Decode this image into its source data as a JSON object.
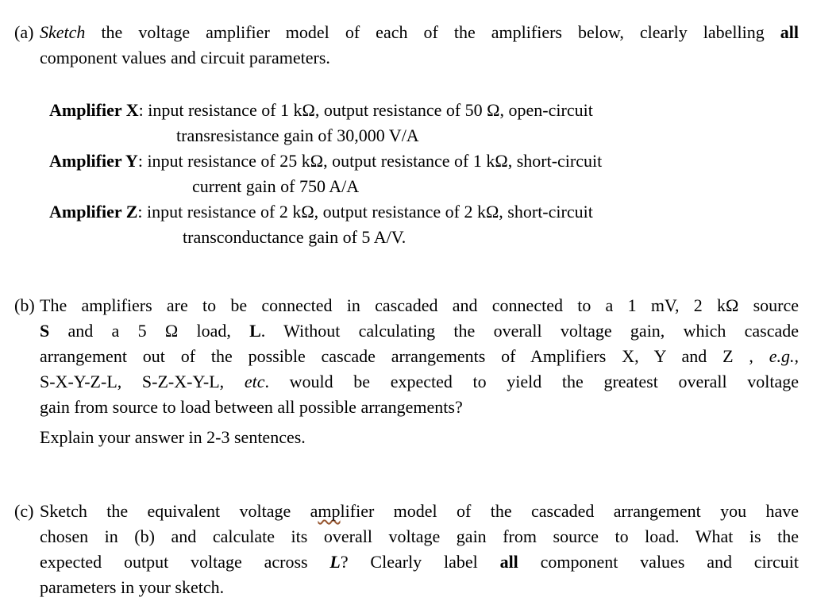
{
  "page": {
    "background_color": "#ffffff",
    "text_color": "#000000",
    "squiggle_color": "#96552f"
  },
  "section_a": {
    "label": "(a)",
    "lines": [
      [
        {
          "t": "Sketch",
          "i": 1
        },
        {
          "t": " the voltage amplifier model of each of the amplifiers below, clearly labelling "
        },
        {
          "t": "all",
          "b": 1
        }
      ],
      [
        {
          "t": "component values and circuit parameters."
        }
      ]
    ]
  },
  "amplifiers": {
    "x": [
      [
        {
          "t": "Amplifier X",
          "b": 1
        },
        {
          "t": ": input resistance of 1 kΩ, output resistance of 50 Ω, open-circuit"
        }
      ],
      [
        {
          "t": "transresistance gain of 30,000 V/A"
        }
      ]
    ],
    "y": [
      [
        {
          "t": "Amplifier Y",
          "b": 1
        },
        {
          "t": ": input resistance of 25 kΩ, output resistance of 1 kΩ, short-circuit"
        }
      ],
      [
        {
          "t": "current gain of 750 A/A"
        }
      ]
    ],
    "z": [
      [
        {
          "t": "Amplifier Z",
          "b": 1
        },
        {
          "t": ": input resistance of 2 kΩ, output resistance of 2 kΩ, short-circuit"
        }
      ],
      [
        {
          "t": "transconductance gain of 5 A/V."
        }
      ]
    ]
  },
  "section_b": {
    "label": "(b)",
    "lines": [
      [
        {
          "t": "The amplifiers are to be connected in cascaded and connected to a 1 mV, 2 kΩ source"
        }
      ],
      [
        {
          "t": "S",
          "b": 1
        },
        {
          "t": " and a 5 Ω load, "
        },
        {
          "t": "L",
          "b": 1
        },
        {
          "t": ". Without calculating the overall voltage gain, which cascade"
        }
      ],
      [
        {
          "t": "arrangement out of the possible cascade arrangements of Amplifiers X, Y and Z , "
        },
        {
          "t": "e.g.,",
          "i": 1
        }
      ],
      [
        {
          "t": "S-X-Y-Z-L, S-Z-X-Y-L, "
        },
        {
          "t": "etc",
          "i": 1
        },
        {
          "t": ". would be expected to yield the greatest overall voltage"
        }
      ],
      [
        {
          "t": "gain from source to load between all possible arrangements?"
        }
      ]
    ],
    "explain": [
      {
        "t": "Explain your answer in 2-3 sentences."
      }
    ]
  },
  "section_c": {
    "label": "(c)",
    "lines": [
      [
        {
          "t": "Sketch the equivalent voltage a"
        },
        {
          "t": "mp",
          "sq": 1
        },
        {
          "t": "lifier model of the cascaded arrangement you have"
        }
      ],
      [
        {
          "t": "chosen in (b) and calculate its overall voltage gain from source to load. What is the"
        }
      ],
      [
        {
          "t": "expected output voltage across "
        },
        {
          "t": "L",
          "b": 1,
          "i": 1
        },
        {
          "t": "? Clearly label "
        },
        {
          "t": "all",
          "b": 1
        },
        {
          "t": " component values and circuit"
        }
      ],
      [
        {
          "t": "parameters in your sketch."
        }
      ]
    ]
  }
}
